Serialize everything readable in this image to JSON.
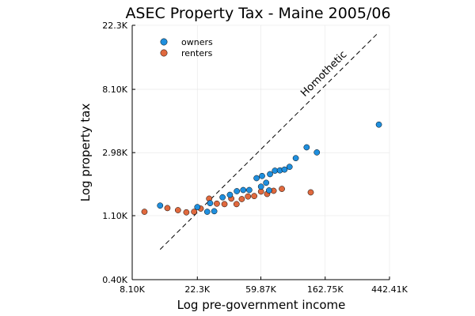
{
  "chart_data": {
    "type": "scatter",
    "title": "ASEC Property Tax - Maine 2005/06",
    "xlabel": "Log pre-government income",
    "ylabel": "Log property tax",
    "x_scale": "log",
    "y_scale": "log",
    "xlim": [
      8100,
      442410
    ],
    "ylim": [
      400,
      22300
    ],
    "x_ticks": [
      "8.10K",
      "22.3K",
      "59.87K",
      "162.75K",
      "442.41K"
    ],
    "x_tick_values": [
      8100,
      22300,
      59870,
      162750,
      442410
    ],
    "y_ticks": [
      "0.40K",
      "1.10K",
      "2.98K",
      "8.10K",
      "22.3K"
    ],
    "y_tick_values": [
      400,
      1100,
      2980,
      8100,
      22300
    ],
    "grid": true,
    "legend_position": "top-left",
    "series": [
      {
        "name": "owners",
        "color": "#1f8fde",
        "points": [
          [
            12500,
            1290
          ],
          [
            22300,
            1260
          ],
          [
            27200,
            1340
          ],
          [
            33000,
            1470
          ],
          [
            37000,
            1530
          ],
          [
            41200,
            1620
          ],
          [
            45500,
            1650
          ],
          [
            50000,
            1650
          ],
          [
            56000,
            1990
          ],
          [
            61000,
            2060
          ],
          [
            69000,
            2120
          ],
          [
            74500,
            2240
          ],
          [
            80500,
            2250
          ],
          [
            86500,
            2280
          ],
          [
            93500,
            2380
          ],
          [
            103000,
            2730
          ],
          [
            122000,
            3240
          ],
          [
            143000,
            2990
          ],
          [
            375000,
            4640
          ],
          [
            29000,
            1180
          ],
          [
            26000,
            1170
          ],
          [
            60000,
            1740
          ],
          [
            65000,
            1850
          ],
          [
            68000,
            1640
          ]
        ]
      },
      {
        "name": "renters",
        "color": "#e0693e",
        "points": [
          [
            9800,
            1170
          ],
          [
            14000,
            1240
          ],
          [
            16500,
            1200
          ],
          [
            18800,
            1160
          ],
          [
            21200,
            1170
          ],
          [
            23500,
            1230
          ],
          [
            26800,
            1440
          ],
          [
            30200,
            1330
          ],
          [
            34000,
            1320
          ],
          [
            37800,
            1440
          ],
          [
            41000,
            1320
          ],
          [
            44500,
            1430
          ],
          [
            49000,
            1490
          ],
          [
            54000,
            1500
          ],
          [
            60000,
            1610
          ],
          [
            66000,
            1550
          ],
          [
            73000,
            1630
          ],
          [
            83000,
            1680
          ],
          [
            130000,
            1590
          ]
        ]
      }
    ],
    "annotations": [
      {
        "text": "Homothetic",
        "line": [
          [
            12500,
            645
          ],
          [
            375000,
            20000
          ]
        ],
        "style": "dashed"
      }
    ]
  }
}
